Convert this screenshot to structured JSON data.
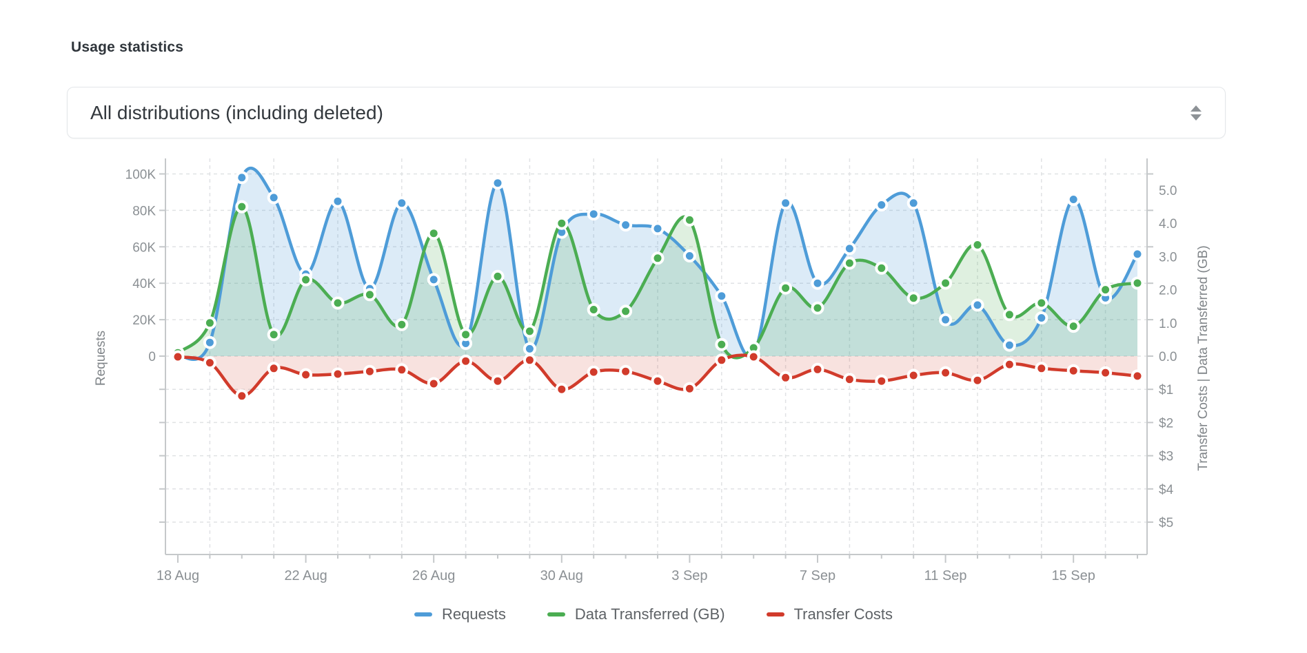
{
  "page": {
    "title": "Usage statistics"
  },
  "filter_select": {
    "value": "All distributions (including deleted)",
    "icon": "up-down-arrows"
  },
  "colors": {
    "requests_blue": "#4e9cd8",
    "data_green": "#4bad52",
    "cost_red": "#d13b2b",
    "axis_line": "#c5c8ca",
    "grid_line": "#e0e2e4",
    "tick_text": "#8b9094",
    "axis_title_text": "#808589",
    "legend_text": "#5e6266"
  },
  "chart_data": {
    "type": "area",
    "title": "",
    "grid": true,
    "legend_position": "bottom",
    "x": [
      "18 Aug",
      "19 Aug",
      "20 Aug",
      "21 Aug",
      "22 Aug",
      "23 Aug",
      "24 Aug",
      "25 Aug",
      "26 Aug",
      "27 Aug",
      "28 Aug",
      "29 Aug",
      "30 Aug",
      "31 Aug",
      "1 Sep",
      "2 Sep",
      "3 Sep",
      "4 Sep",
      "5 Sep",
      "6 Sep",
      "7 Sep",
      "8 Sep",
      "9 Sep",
      "10 Sep",
      "11 Sep",
      "12 Sep",
      "13 Sep",
      "14 Sep",
      "15 Sep",
      "16 Sep",
      "17 Sep"
    ],
    "x_axis_tick_labels": [
      "18 Aug",
      "22 Aug",
      "26 Aug",
      "30 Aug",
      "3 Sep",
      "7 Sep",
      "11 Sep",
      "15 Sep"
    ],
    "axes": {
      "left": {
        "title": "Requests",
        "tick_labels": [
          "100K",
          "80K",
          "60K",
          "40K",
          "20K",
          "0"
        ],
        "tick_values": [
          100000,
          80000,
          60000,
          40000,
          20000,
          0
        ],
        "range": [
          0,
          108000
        ]
      },
      "right": {
        "title": "Transfer Costs | Data Transferred (GB)",
        "gb_tick_labels": [
          "5.0",
          "4.0",
          "3.0",
          "2.0",
          "1.0",
          "0.0"
        ],
        "gb_tick_values": [
          5,
          4,
          3,
          2,
          1,
          0
        ],
        "cost_tick_labels": [
          "$1",
          "$2",
          "$3",
          "$4",
          "$5"
        ],
        "cost_tick_values": [
          1,
          2,
          3,
          4,
          5
        ]
      }
    },
    "series": [
      {
        "name": "Requests",
        "axis": "left",
        "color": "#4e9cd8",
        "fill_opacity": 0.2,
        "values": [
          300,
          7500,
          98000,
          87000,
          45000,
          85000,
          37000,
          84000,
          42000,
          7000,
          95000,
          4000,
          68000,
          78000,
          72000,
          70000,
          55000,
          33000,
          1000,
          84000,
          40000,
          59000,
          83000,
          84000,
          20000,
          28000,
          6000,
          21000,
          86000,
          32000,
          56000
        ]
      },
      {
        "name": "Data Transferred (GB)",
        "axis": "right_gb",
        "color": "#4bad52",
        "fill_opacity": 0.18,
        "values": [
          0.1,
          1.0,
          4.5,
          0.65,
          2.3,
          1.6,
          1.85,
          0.95,
          3.7,
          0.65,
          2.4,
          0.75,
          4.0,
          1.4,
          1.35,
          2.95,
          4.1,
          0.35,
          0.25,
          2.05,
          1.45,
          2.8,
          2.65,
          1.75,
          2.2,
          3.35,
          1.25,
          1.6,
          0.9,
          2.0,
          2.2
        ]
      },
      {
        "name": "Transfer Costs",
        "axis": "right_cost",
        "color": "#d13b2b",
        "fill_opacity": 0.15,
        "values": [
          0.02,
          0.2,
          1.2,
          0.37,
          0.56,
          0.54,
          0.46,
          0.41,
          0.83,
          0.15,
          0.75,
          0.12,
          1.0,
          0.48,
          0.46,
          0.75,
          0.98,
          0.12,
          0.02,
          0.65,
          0.4,
          0.7,
          0.75,
          0.58,
          0.5,
          0.73,
          0.25,
          0.37,
          0.44,
          0.5,
          0.6
        ]
      }
    ]
  }
}
